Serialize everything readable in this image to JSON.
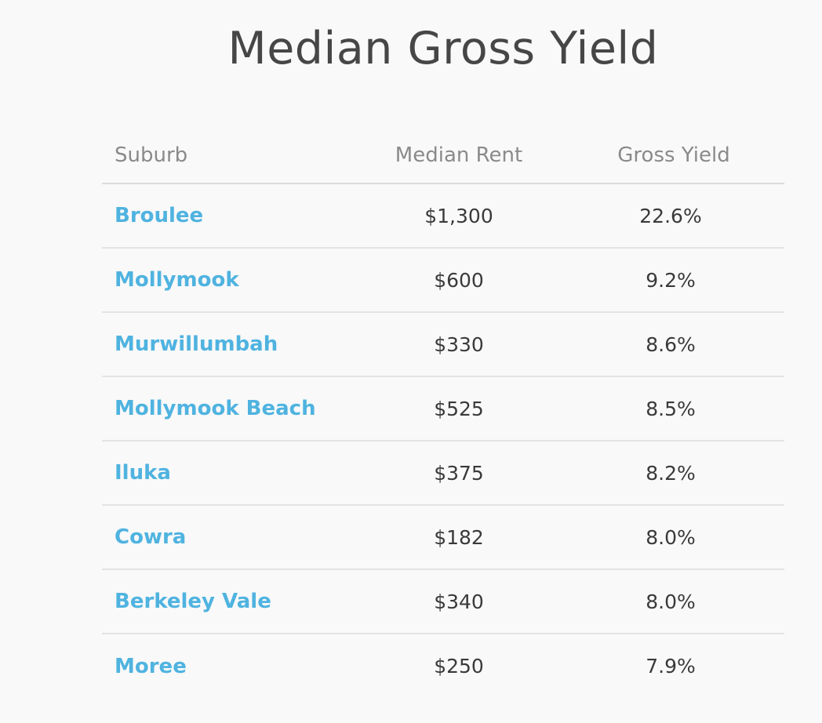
{
  "title": "Median Gross Yield",
  "table": {
    "headers": {
      "suburb": "Suburb",
      "rent": "Median Rent",
      "yield": "Gross Yield"
    },
    "rows": [
      {
        "suburb": "Broulee",
        "rent": "$1,300",
        "yield": "22.6%"
      },
      {
        "suburb": "Mollymook",
        "rent": "$600",
        "yield": "9.2%"
      },
      {
        "suburb": "Murwillumbah",
        "rent": "$330",
        "yield": "8.6%"
      },
      {
        "suburb": "Mollymook Beach",
        "rent": "$525",
        "yield": "8.5%"
      },
      {
        "suburb": "Iluka",
        "rent": "$375",
        "yield": "8.2%"
      },
      {
        "suburb": "Cowra",
        "rent": "$182",
        "yield": "8.0%"
      },
      {
        "suburb": "Berkeley Vale",
        "rent": "$340",
        "yield": "8.0%"
      },
      {
        "suburb": "Moree",
        "rent": "$250",
        "yield": "7.9%"
      }
    ]
  },
  "colors": {
    "link": "#4fb3e0",
    "text": "#3a3a3a",
    "header": "#8a8a8a",
    "title": "#464646",
    "background": "#f9f9f9"
  }
}
